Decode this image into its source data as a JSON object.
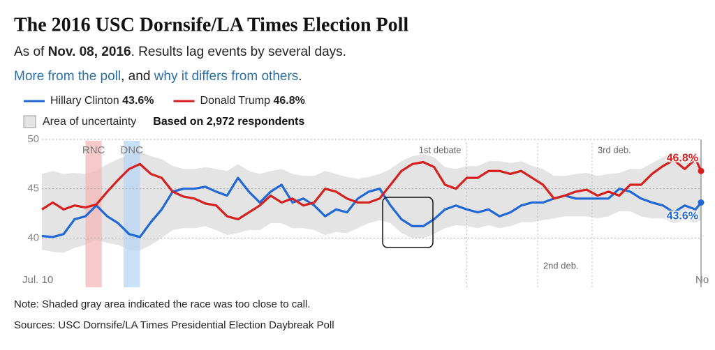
{
  "chart_data": {
    "type": "line",
    "title": "The 2016 USC Dornsife/LA Times Election Poll",
    "subtitle": [
      "As of ",
      "Nov. 08, 2016",
      ". Results lag events by several days."
    ],
    "links": [
      "More from the poll",
      ", and ",
      "why it differs from others",
      "."
    ],
    "x": [
      0,
      2,
      4,
      6,
      8,
      10,
      12,
      14,
      16,
      18,
      20,
      22,
      24,
      26,
      28,
      30,
      32,
      34,
      36,
      38,
      40,
      42,
      44,
      46,
      48,
      50,
      52,
      54,
      56,
      58,
      60,
      62,
      64,
      66,
      68,
      70,
      72,
      74,
      76,
      78,
      80,
      82,
      84,
      86,
      88,
      90,
      92,
      94,
      96,
      98,
      100,
      102,
      104,
      106,
      108,
      110,
      112,
      114,
      116,
      118,
      120,
      121
    ],
    "xlim": [
      0,
      121
    ],
    "xticks": [
      {
        "value": 0,
        "label": "Jul. 10"
      },
      {
        "value": 121,
        "label": "No"
      }
    ],
    "ylim": [
      35,
      50
    ],
    "yticks": [
      40,
      45,
      50
    ],
    "grid": true,
    "series": [
      {
        "name": "Hillary Clinton",
        "color": "#1f68d6",
        "end_label": "43.6%",
        "values": [
          40.2,
          40.1,
          40.4,
          41.9,
          42.2,
          43.3,
          42.2,
          41.5,
          40.4,
          40.1,
          41.6,
          42.9,
          44.7,
          45.0,
          45.0,
          45.2,
          44.7,
          44.3,
          46.1,
          44.7,
          43.6,
          44.7,
          45.4,
          43.6,
          44.0,
          43.3,
          42.2,
          42.9,
          42.6,
          44.0,
          44.7,
          45.0,
          43.3,
          41.9,
          41.2,
          41.2,
          41.9,
          42.9,
          43.3,
          42.9,
          42.6,
          42.9,
          42.2,
          42.6,
          43.3,
          43.6,
          43.6,
          44.0,
          44.3,
          44.0,
          44.0,
          44.0,
          44.0,
          45.0,
          44.7,
          44.0,
          43.6,
          43.3,
          42.6,
          43.3,
          42.9,
          43.6
        ]
      },
      {
        "name": "Donald Trump",
        "color": "#d61f1f",
        "end_label": "46.8%",
        "values": [
          42.9,
          43.6,
          42.9,
          43.3,
          43.1,
          43.4,
          44.7,
          45.9,
          47.0,
          47.5,
          46.5,
          46.1,
          44.7,
          44.2,
          44.0,
          43.5,
          43.3,
          42.2,
          41.9,
          42.6,
          43.3,
          44.3,
          43.6,
          44.0,
          43.3,
          43.6,
          45.0,
          44.7,
          44.0,
          43.6,
          43.6,
          44.0,
          45.4,
          46.8,
          47.5,
          47.7,
          47.2,
          45.4,
          45.0,
          46.1,
          46.1,
          46.8,
          46.8,
          46.5,
          46.8,
          46.1,
          45.4,
          44.0,
          44.3,
          44.7,
          44.9,
          44.3,
          44.7,
          44.3,
          45.4,
          45.4,
          46.5,
          47.3,
          47.9,
          47.0,
          48.0,
          46.8
        ]
      }
    ],
    "band": {
      "name": "Area of uncertainty",
      "color": "#e4e4e4",
      "upper": [
        46.5,
        46.8,
        46.5,
        46.6,
        46.5,
        46.8,
        47.5,
        48.0,
        48.5,
        48.8,
        48.3,
        48.0,
        47.3,
        47.0,
        47.0,
        47.2,
        47.0,
        46.8,
        47.5,
        46.8,
        46.5,
        46.8,
        47.0,
        46.5,
        46.3,
        46.3,
        46.8,
        46.5,
        46.2,
        46.0,
        46.2,
        46.5,
        47.0,
        47.8,
        48.3,
        48.5,
        48.2,
        47.2,
        47.0,
        47.3,
        47.3,
        47.8,
        47.8,
        47.6,
        47.8,
        47.3,
        47.0,
        46.3,
        46.3,
        46.5,
        46.6,
        46.3,
        46.5,
        46.6,
        47.0,
        47.0,
        47.6,
        48.2,
        48.6,
        48.2,
        48.7,
        48.0
      ],
      "lower": [
        38.8,
        38.6,
        38.5,
        39.0,
        39.3,
        39.8,
        39.5,
        39.3,
        38.8,
        38.7,
        39.3,
        40.0,
        40.8,
        41.0,
        41.0,
        41.2,
        40.8,
        40.3,
        40.5,
        40.8,
        40.8,
        41.5,
        41.5,
        41.0,
        41.0,
        40.8,
        40.3,
        40.6,
        40.5,
        41.0,
        41.5,
        41.8,
        41.5,
        40.5,
        40.0,
        40.0,
        40.4,
        41.0,
        41.3,
        41.2,
        41.0,
        41.3,
        41.0,
        41.2,
        41.6,
        41.6,
        41.8,
        42.0,
        42.2,
        42.2,
        42.2,
        42.0,
        42.2,
        42.7,
        42.7,
        42.2,
        42.0,
        42.0,
        41.5,
        41.8,
        41.6,
        41.8
      ]
    },
    "respondents": "Based on 2,972 respondents",
    "conventions": [
      {
        "label": "RNC",
        "from": 8,
        "to": 11,
        "color": "#f4b8b8"
      },
      {
        "label": "DNC",
        "from": 15,
        "to": 18,
        "color": "#b8d4f6"
      }
    ],
    "debates": [
      {
        "label": "1st debate",
        "x": 78
      },
      {
        "label": "2nd deb.",
        "x": 91
      },
      {
        "label": "3rd deb.",
        "x": 101
      }
    ],
    "notes": [
      "Note: Shaded gray area indicated the race was too close to call.",
      "Sources: USC Dornsife/LA Times Presidential Election Daybreak Poll"
    ]
  }
}
